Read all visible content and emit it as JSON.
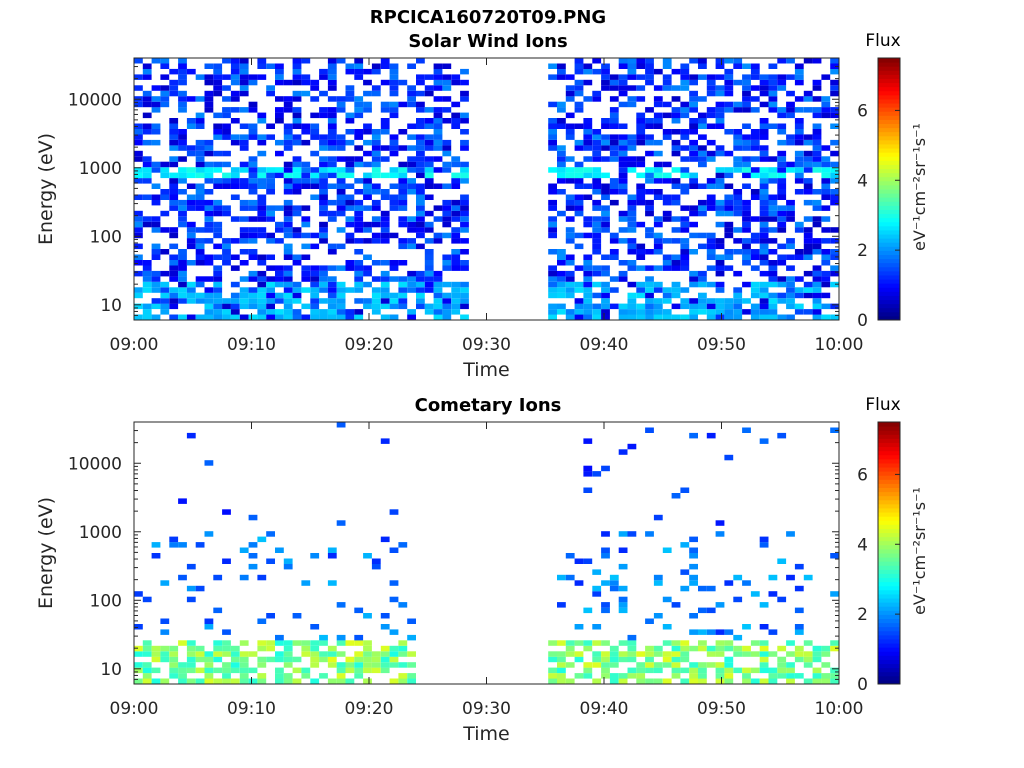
{
  "figure": {
    "filename_title": "RPCICA160720T09.PNG",
    "colorbar_label": "Flux",
    "colorbar_units": "eV⁻¹cm⁻²sr⁻¹s⁻¹",
    "colormap": "jet",
    "colormap_stops": [
      "#00007f",
      "#0000ff",
      "#00ffff",
      "#ffff00",
      "#ff0000",
      "#7f0000"
    ]
  },
  "chart_data": [
    {
      "type": "heatmap",
      "title": "Solar Wind Ions",
      "xlabel": "Time",
      "ylabel": "Energy (eV)",
      "yscale": "log",
      "ylim": [
        6,
        40000
      ],
      "xlim": [
        "09:00",
        "10:00"
      ],
      "x_ticks": [
        "09:00",
        "09:10",
        "09:20",
        "09:30",
        "09:40",
        "09:50",
        "10:00"
      ],
      "y_ticks": [
        10,
        100,
        1000,
        10000
      ],
      "y_tick_labels": [
        "10",
        "100",
        "1000",
        "10000"
      ],
      "colorbar": {
        "label": "Flux",
        "range": [
          0,
          7.5
        ],
        "ticks": [
          0,
          2,
          4,
          6
        ],
        "tick_labels": [
          "0",
          "2",
          "4",
          "6"
        ]
      },
      "data_gap": [
        "09:28",
        "09:35"
      ],
      "description_of_values": [
        {
          "time_range": [
            "09:00",
            "09:28"
          ],
          "energy_range": [
            6,
            40000
          ],
          "flux_range": [
            0.5,
            2.0
          ]
        },
        {
          "time_range": [
            "09:00",
            "09:28"
          ],
          "energy_range": [
            6,
            20
          ],
          "flux_range": [
            2.0,
            2.6
          ]
        },
        {
          "time_range": [
            "09:00",
            "09:28"
          ],
          "energy_range": [
            700,
            1000
          ],
          "flux_range": [
            2.4,
            3.0
          ]
        },
        {
          "time_range": [
            "09:35",
            "10:00"
          ],
          "energy_range": [
            6,
            40000
          ],
          "flux_range": [
            0.5,
            2.0
          ]
        },
        {
          "time_range": [
            "09:35",
            "10:00"
          ],
          "energy_range": [
            6,
            20
          ],
          "flux_range": [
            2.0,
            2.6
          ]
        },
        {
          "time_range": [
            "09:35",
            "10:00"
          ],
          "energy_range": [
            700,
            1000
          ],
          "flux_range": [
            2.4,
            3.0
          ]
        }
      ]
    },
    {
      "type": "heatmap",
      "title": "Cometary Ions",
      "xlabel": "Time",
      "ylabel": "Energy (eV)",
      "yscale": "log",
      "ylim": [
        6,
        40000
      ],
      "xlim": [
        "09:00",
        "10:00"
      ],
      "x_ticks": [
        "09:00",
        "09:10",
        "09:20",
        "09:30",
        "09:40",
        "09:50",
        "10:00"
      ],
      "y_ticks": [
        10,
        100,
        1000,
        10000
      ],
      "y_tick_labels": [
        "10",
        "100",
        "1000",
        "10000"
      ],
      "colorbar": {
        "label": "Flux",
        "range": [
          0,
          7.5
        ],
        "ticks": [
          0,
          2,
          4,
          6
        ],
        "tick_labels": [
          "0",
          "2",
          "4",
          "6"
        ]
      },
      "data_gap": [
        "09:24",
        "09:35"
      ],
      "description_of_values": [
        {
          "time_range": [
            "09:00",
            "09:24"
          ],
          "energy_range": [
            6,
            25
          ],
          "flux_range": [
            3.0,
            4.5
          ]
        },
        {
          "time_range": [
            "09:00",
            "09:24"
          ],
          "energy_range": [
            25,
            1000
          ],
          "flux_range": [
            1.2,
            2.4
          ]
        },
        {
          "time_range": [
            "09:35",
            "10:00"
          ],
          "energy_range": [
            6,
            25
          ],
          "flux_range": [
            3.0,
            4.5
          ]
        },
        {
          "time_range": [
            "09:35",
            "10:00"
          ],
          "energy_range": [
            25,
            1000
          ],
          "flux_range": [
            1.2,
            2.4
          ]
        },
        {
          "time_range": [
            "09:00",
            "10:00"
          ],
          "energy_range": [
            1000,
            40000
          ],
          "flux_range": [
            1.0,
            1.8
          ]
        }
      ]
    }
  ]
}
